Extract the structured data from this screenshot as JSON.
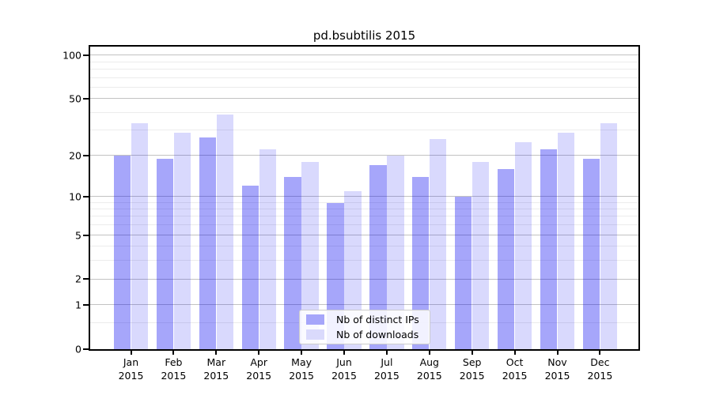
{
  "title": "pd.bsubtilis 2015",
  "chart_data": {
    "type": "bar",
    "title": "pd.bsubtilis 2015",
    "categories": [
      "Jan 2015",
      "Feb 2015",
      "Mar 2015",
      "Apr 2015",
      "May 2015",
      "Jun 2015",
      "Jul 2015",
      "Aug 2015",
      "Sep 2015",
      "Oct 2015",
      "Nov 2015",
      "Dec 2015"
    ],
    "months": [
      "Jan",
      "Feb",
      "Mar",
      "Apr",
      "May",
      "Jun",
      "Jul",
      "Aug",
      "Sep",
      "Oct",
      "Nov",
      "Dec"
    ],
    "year_label": "2015",
    "series": [
      {
        "name": "Nb of distinct IPs",
        "color": "rgba(0,0,240,0.35)",
        "legend_swatch_color": "#a6a6fa",
        "values": [
          20,
          19,
          27,
          12,
          14,
          9,
          17,
          14,
          10,
          16,
          22,
          19
        ]
      },
      {
        "name": "Nb of downloads",
        "color": "rgba(0,0,240,0.15)",
        "legend_swatch_color": "#dadafc",
        "values": [
          34,
          29,
          39,
          22,
          18,
          11,
          20,
          26,
          18,
          25,
          29,
          34
        ]
      }
    ],
    "y_axis": {
      "scale": "log1p",
      "tick_values": [
        100,
        50,
        20,
        10,
        5,
        2,
        1,
        0
      ],
      "tick_labels": [
        "100",
        "50",
        "20",
        "10",
        "5",
        "2",
        "1",
        "0"
      ],
      "major_gridlines": [
        1,
        2,
        5,
        10,
        20,
        50,
        100
      ],
      "minor_gridlines": [
        0.5,
        3,
        4,
        6,
        7,
        8,
        9,
        30,
        40,
        60,
        70,
        80,
        90
      ],
      "ylim": [
        0,
        100
      ]
    },
    "legend_position": "lower center",
    "grid": true,
    "colors": {
      "bar_base": "#0000f0",
      "major_grid": "#c2c2c2",
      "minor_grid": "#ececec",
      "axis": "#000000",
      "background": "#ffffff"
    }
  }
}
